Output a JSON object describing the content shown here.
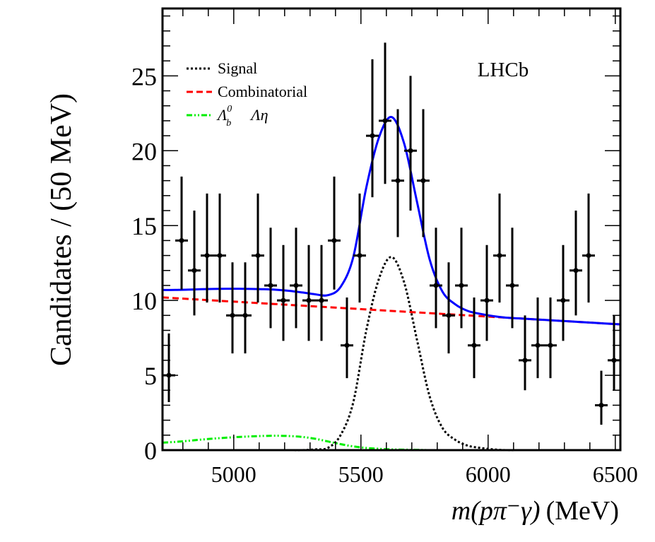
{
  "chart_data": {
    "type": "line",
    "title": "",
    "xlabel_italic": "m(pπ⁻γ)",
    "xlabel_unit": "(MeV)",
    "ylabel": "Candidates / (50 MeV)",
    "annotation": "LHCb",
    "xlim": [
      4720,
      6520
    ],
    "ylim": [
      0,
      29.5
    ],
    "xticks": [
      5000,
      5500,
      6000,
      6500
    ],
    "xtick_labels": [
      "5000",
      "5500",
      "6000",
      "6500"
    ],
    "yticks": [
      0,
      5,
      10,
      15,
      20,
      25
    ],
    "ytick_labels": [
      "0",
      "5",
      "10",
      "15",
      "20",
      "25"
    ],
    "grid": false,
    "legend_position": "top-left",
    "legend": [
      {
        "label": "Signal",
        "style": "dotted",
        "color": "#000000"
      },
      {
        "label": "Combinatorial",
        "style": "dashed",
        "color": "#ff0000"
      },
      {
        "label_main": "Λ",
        "label_sup": "0",
        "label_sub": "b",
        "label_rest": "Λη",
        "style": "dash-dot-dot",
        "color": "#00ee00"
      }
    ],
    "data_points": {
      "bin_width": 50,
      "x": [
        4745,
        4795,
        4845,
        4895,
        4945,
        4995,
        5045,
        5095,
        5145,
        5195,
        5245,
        5295,
        5345,
        5395,
        5445,
        5495,
        5545,
        5595,
        5645,
        5695,
        5745,
        5795,
        5845,
        5895,
        5945,
        5995,
        6045,
        6095,
        6145,
        6195,
        6245,
        6295,
        6345,
        6395,
        6445,
        6495
      ],
      "y": [
        5,
        14,
        12,
        13,
        13,
        9,
        9,
        13,
        11,
        10,
        11,
        10,
        10,
        14,
        7,
        13,
        21,
        22,
        18,
        20,
        18,
        11,
        9,
        11,
        7,
        10,
        13,
        11,
        6,
        7,
        7,
        10,
        12,
        13,
        3,
        6
      ],
      "color": "#000000"
    },
    "curves_x": [
      4720,
      4770,
      4820,
      4870,
      4920,
      4970,
      5020,
      5070,
      5120,
      5170,
      5220,
      5270,
      5320,
      5370,
      5420,
      5470,
      5520,
      5570,
      5620,
      5670,
      5720,
      5770,
      5820,
      5870,
      5920,
      5970,
      6020,
      6070,
      6120,
      6170,
      6220,
      6270,
      6320,
      6370,
      6420,
      6470,
      6520
    ],
    "series": [
      {
        "key": "total",
        "color": "#0000ff",
        "style": "solid",
        "values": [
          10.7,
          10.7,
          10.72,
          10.75,
          10.77,
          10.78,
          10.78,
          10.77,
          10.75,
          10.71,
          10.64,
          10.53,
          10.41,
          10.35,
          10.9,
          12.9,
          17.45,
          20.84,
          22.25,
          20.48,
          16.62,
          12.75,
          10.6,
          9.75,
          9.3,
          9.1,
          8.95,
          8.85,
          8.8,
          8.75,
          8.7,
          8.65,
          8.6,
          8.55,
          8.5,
          8.45,
          8.4
        ]
      },
      {
        "key": "signal",
        "name": "Signal",
        "color": "#000000",
        "style": "dotted",
        "values": [
          0,
          0,
          0,
          0,
          0,
          0,
          0,
          0,
          0,
          0,
          0,
          0,
          0.05,
          0.15,
          1.0,
          3.2,
          7.9,
          11.4,
          12.9,
          11.2,
          7.4,
          3.6,
          1.5,
          0.7,
          0.3,
          0.15,
          0.05,
          0,
          0,
          0,
          0,
          0,
          0,
          0,
          0,
          0,
          0
        ]
      },
      {
        "key": "combinatorial",
        "name": "Combinatorial",
        "color": "#ff0000",
        "style": "dashed",
        "values": [
          10.2,
          10.15,
          10.1,
          10.05,
          10.0,
          9.95,
          9.9,
          9.85,
          9.8,
          9.75,
          9.7,
          9.65,
          9.6,
          9.55,
          9.5,
          9.45,
          9.4,
          9.35,
          9.3,
          9.25,
          9.2,
          9.15,
          9.1,
          9.05,
          9.0,
          8.95,
          8.9,
          8.85,
          8.8,
          8.75,
          8.7,
          8.65,
          8.6,
          8.55,
          8.5,
          8.45,
          8.4
        ]
      },
      {
        "key": "lambda_eta",
        "name": "Λb0 → Λη",
        "color": "#00ee00",
        "style": "dash-dot-dot",
        "values": [
          0.5,
          0.55,
          0.62,
          0.7,
          0.77,
          0.83,
          0.88,
          0.92,
          0.95,
          0.96,
          0.94,
          0.88,
          0.76,
          0.58,
          0.4,
          0.25,
          0.15,
          0.09,
          0.05,
          0.03,
          0.02,
          0,
          0,
          0,
          0,
          0,
          0,
          0,
          0,
          0,
          0,
          0,
          0,
          0,
          0,
          0,
          0
        ]
      }
    ]
  }
}
